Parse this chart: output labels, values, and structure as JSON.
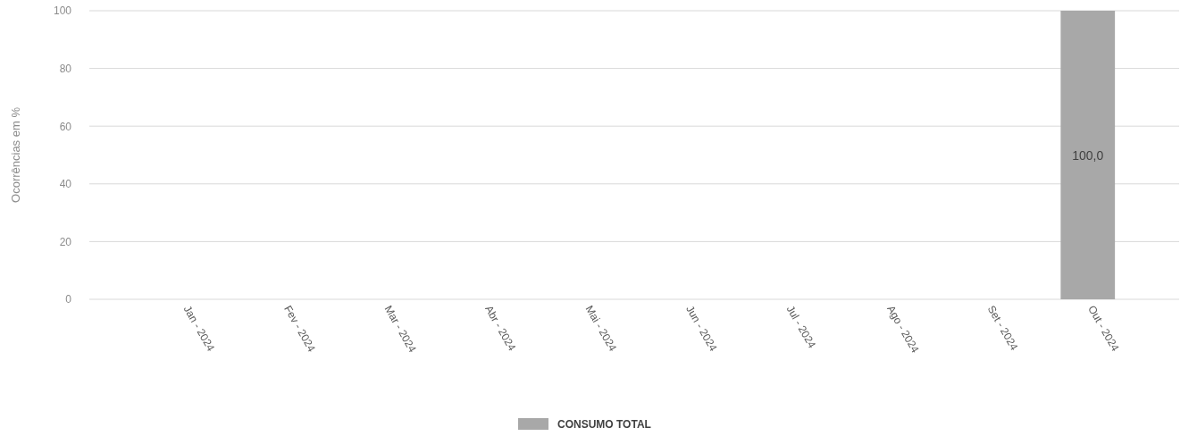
{
  "chart_data": {
    "type": "bar",
    "ylabel": "Ocorrências em %",
    "categories": [
      "Jan - 2024",
      "Fev - 2024",
      "Mar - 2024",
      "Abr - 2024",
      "Mai - 2024",
      "Jun - 2024",
      "Jul - 2024",
      "Ago - 2024",
      "Set - 2024",
      "Out - 2024"
    ],
    "series": [
      {
        "name": "CONSUMO TOTAL",
        "color": "#a8a8a8",
        "values": [
          0,
          0,
          0,
          0,
          0,
          0,
          0,
          0,
          0,
          100
        ],
        "value_labels": [
          null,
          null,
          null,
          null,
          null,
          null,
          null,
          null,
          null,
          "100,0"
        ]
      }
    ],
    "ylim": [
      0,
      100
    ],
    "yticks": [
      0,
      20,
      40,
      60,
      80,
      100
    ],
    "grid": "y",
    "legend": "bottom"
  }
}
